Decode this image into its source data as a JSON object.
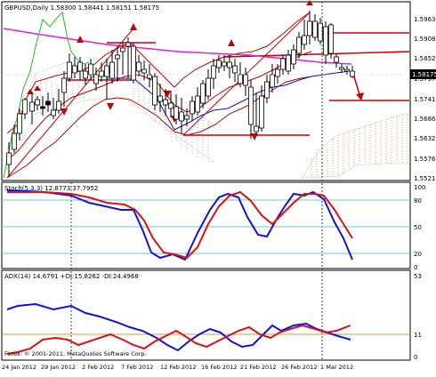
{
  "main": {
    "title": "GBPUSD,Daily  1.58300 1.58441 1.58151 1.58175",
    "price_labels": [
      "1.59630",
      "1.59080",
      "1.58525",
      "1.57971",
      "1.57416",
      "1.56860",
      "1.56320",
      "1.55765",
      "1.55210"
    ],
    "current_price": "1.58175"
  },
  "stoch": {
    "title": "Stoch(5,3,3) 12.8773 37.7952",
    "levels": [
      "100",
      "80",
      "50",
      "20",
      "0"
    ]
  },
  "adx": {
    "title": "ADX(14) 14.6791 +DI:15.8262 -DI:24.4968",
    "levels": [
      "53",
      "11",
      "0"
    ]
  },
  "xaxis": {
    "labels": [
      "24 Jan 2012",
      "29 Jan 2012",
      "2 Feb 2012",
      "7 Feb 2012",
      "12 Feb 2012",
      "16 Feb 2012",
      "21 Feb 2012",
      "26 Feb 2012",
      "1 Mar 2012"
    ]
  },
  "copyright": "Forex: © 2001-2011, MetaQuotes Software Corp.",
  "colors": {
    "bull_candle": "#ffffff",
    "bear_candle": "#000000",
    "bb_line": "#c80000",
    "ma_pink": "#e020e0",
    "green_line": "#20c020",
    "stoch_main": "#1010e0",
    "stoch_signal": "#e01010",
    "level_line": "#66cccc"
  }
}
